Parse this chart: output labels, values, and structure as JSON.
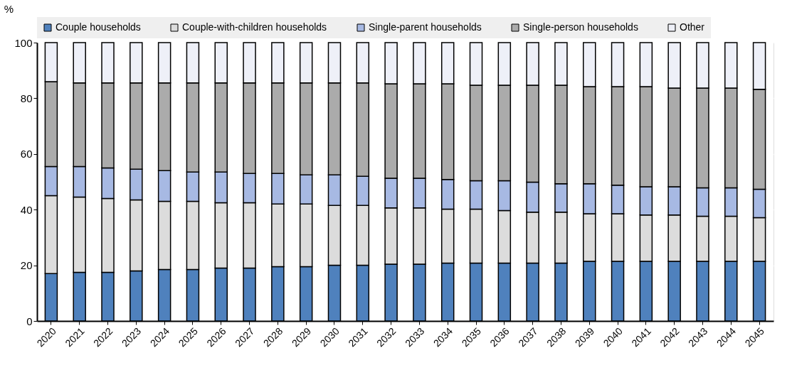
{
  "chart_data": {
    "type": "bar",
    "stacked": true,
    "ylabel": "%",
    "categories": [
      "2020",
      "2021",
      "2022",
      "2023",
      "2024",
      "2025",
      "2026",
      "2027",
      "2028",
      "2029",
      "2030",
      "2031",
      "2032",
      "2033",
      "2034",
      "2035",
      "2036",
      "2037",
      "2038",
      "2039",
      "2040",
      "2041",
      "2042",
      "2043",
      "2044",
      "2045"
    ],
    "series": [
      {
        "name": "Couple households",
        "color": "#4f81bd",
        "values": [
          17,
          17.5,
          17.5,
          18,
          18.5,
          18.5,
          19,
          19,
          19.5,
          19.5,
          20,
          20,
          20.4,
          20.4,
          20.8,
          20.8,
          20.8,
          20.8,
          20.8,
          21.4,
          21.4,
          21.4,
          21.4,
          21.4,
          21.4,
          21.4
        ]
      },
      {
        "name": "Couple-with-children households",
        "color": "#dcdcdc",
        "values": [
          28,
          27,
          26.5,
          25.5,
          24.5,
          24.5,
          23.5,
          23.5,
          22.5,
          22.5,
          21.5,
          21.5,
          20.2,
          20.2,
          19.4,
          19.4,
          18.9,
          18.3,
          18.3,
          17.1,
          17.1,
          16.7,
          16.7,
          16.2,
          16.2,
          15.7
        ]
      },
      {
        "name": "Single-parent households",
        "color": "#a7b9e3",
        "values": [
          10.5,
          11,
          11,
          11,
          11,
          10.5,
          11,
          10.5,
          11,
          10.5,
          11,
          10.5,
          10.7,
          10.7,
          10.6,
          10.2,
          10.7,
          10.8,
          10.2,
          10.8,
          10.3,
          10.1,
          10.1,
          10.2,
          10.2,
          10.2
        ]
      },
      {
        "name": "Single-person households",
        "color": "#ababab",
        "values": [
          30.5,
          30,
          30.5,
          31,
          31.5,
          32,
          32,
          32.5,
          32.5,
          33,
          33,
          33.5,
          33.9,
          33.9,
          34.4,
          34.3,
          34.3,
          34.8,
          35.4,
          34.9,
          35.4,
          36.0,
          35.5,
          35.9,
          35.9,
          35.9
        ]
      },
      {
        "name": "Other",
        "color": "#eef0f8",
        "values": [
          14,
          14.5,
          14.5,
          14.5,
          14.5,
          14.5,
          14.5,
          14.5,
          14.5,
          14.5,
          14.5,
          14.5,
          14.8,
          14.8,
          14.8,
          15.3,
          15.3,
          15.3,
          15.3,
          15.8,
          15.8,
          15.8,
          16.3,
          16.3,
          16.3,
          16.8
        ]
      }
    ],
    "ylim": [
      0,
      100
    ],
    "yticks": [
      0,
      20,
      40,
      60,
      80,
      100
    ],
    "grid": true,
    "legend": "top"
  }
}
